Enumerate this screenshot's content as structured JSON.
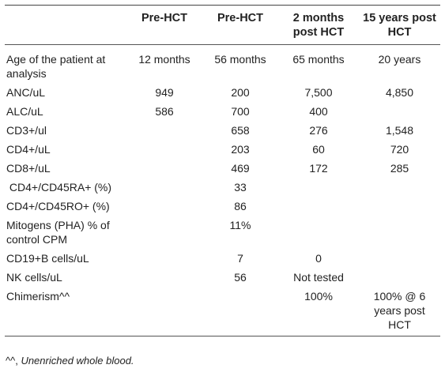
{
  "header": [
    "",
    "Pre-HCT",
    "Pre-HCT",
    "2 months post HCT",
    "15 years post HCT"
  ],
  "rows": [
    {
      "label": "Age of the patient at analysis",
      "c1": "12 months",
      "c2": "56 months",
      "c3": "65 months",
      "c4": "20 years"
    },
    {
      "label": "ANC/uL",
      "c1": "949",
      "c2": "200",
      "c3": "7,500",
      "c4": "4,850"
    },
    {
      "label": "ALC/uL",
      "c1": "586",
      "c2": "700",
      "c3": "400",
      "c4": ""
    },
    {
      "label": "CD3+/ul",
      "c1": "",
      "c2": "658",
      "c3": "276",
      "c4": "1,548"
    },
    {
      "label": "CD4+/uL",
      "c1": "",
      "c2": "203",
      "c3": "60",
      "c4": "720"
    },
    {
      "label": "CD8+/uL",
      "c1": "",
      "c2": "469",
      "c3": "172",
      "c4": "285"
    },
    {
      "label": " CD4+/CD45RA+ (%)",
      "c1": "",
      "c2": "33",
      "c3": "",
      "c4": ""
    },
    {
      "label": "CD4+/CD45RO+ (%)",
      "c1": "",
      "c2": "86",
      "c3": "",
      "c4": ""
    },
    {
      "label": "Mitogens (PHA) % of control CPM",
      "c1": "",
      "c2": "11%",
      "c3": "",
      "c4": ""
    },
    {
      "label": "CD19+B cells/uL",
      "c1": "",
      "c2": "7",
      "c3": "0",
      "c4": ""
    },
    {
      "label": "NK cells/uL",
      "c1": "",
      "c2": "56",
      "c3": "Not tested",
      "c4": ""
    },
    {
      "label": "Chimerism^^",
      "c1": "",
      "c2": "",
      "c3": "100%",
      "c4": "100% @ 6 years post HCT"
    }
  ],
  "footnote": {
    "symbol": "^^, ",
    "text": "Unenriched whole blood."
  }
}
